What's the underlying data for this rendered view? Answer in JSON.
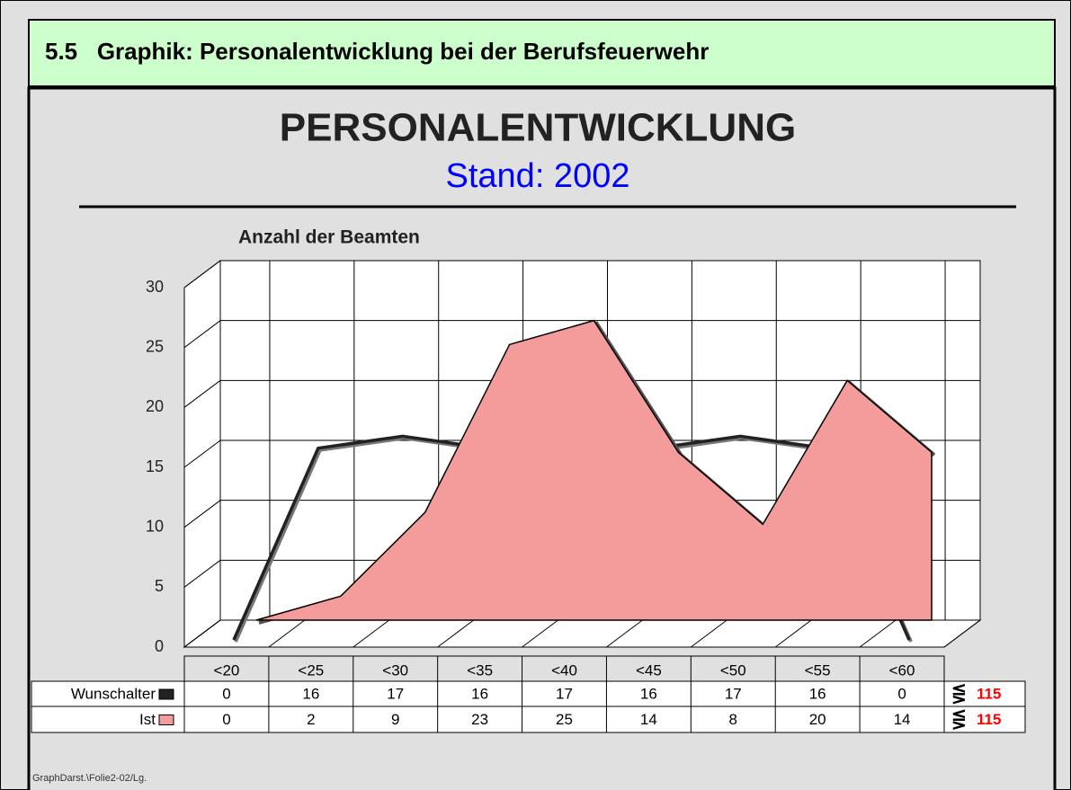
{
  "header": {
    "title": "5.5   Graphik: Personalentwicklung bei der Berufsfeuerwehr"
  },
  "chart_data": {
    "type": "area",
    "title": "PERSONALENTWICKLUNG",
    "subtitle": "Stand: 2002",
    "y_label": "Anzahl der Beamten",
    "categories": [
      "<20",
      "<25",
      "<30",
      "<35",
      "<40",
      "<45",
      "<50",
      "<55",
      "<60"
    ],
    "ylim": [
      0,
      30
    ],
    "yticks": [
      0,
      5,
      10,
      15,
      20,
      25,
      30
    ],
    "grid": true,
    "total_symbol": "⋚",
    "series": [
      {
        "name": "Wunschalter",
        "kind": "line",
        "color": "#222222",
        "values": [
          0,
          16,
          17,
          16,
          17,
          16,
          17,
          16,
          0
        ],
        "total": 115
      },
      {
        "name": "Ist",
        "kind": "area",
        "color": "#f49b9b",
        "values": [
          0,
          2,
          9,
          23,
          25,
          14,
          8,
          20,
          14
        ],
        "total": 115
      }
    ],
    "footer": "GraphDarst.\\Folie2-02/Lg."
  }
}
